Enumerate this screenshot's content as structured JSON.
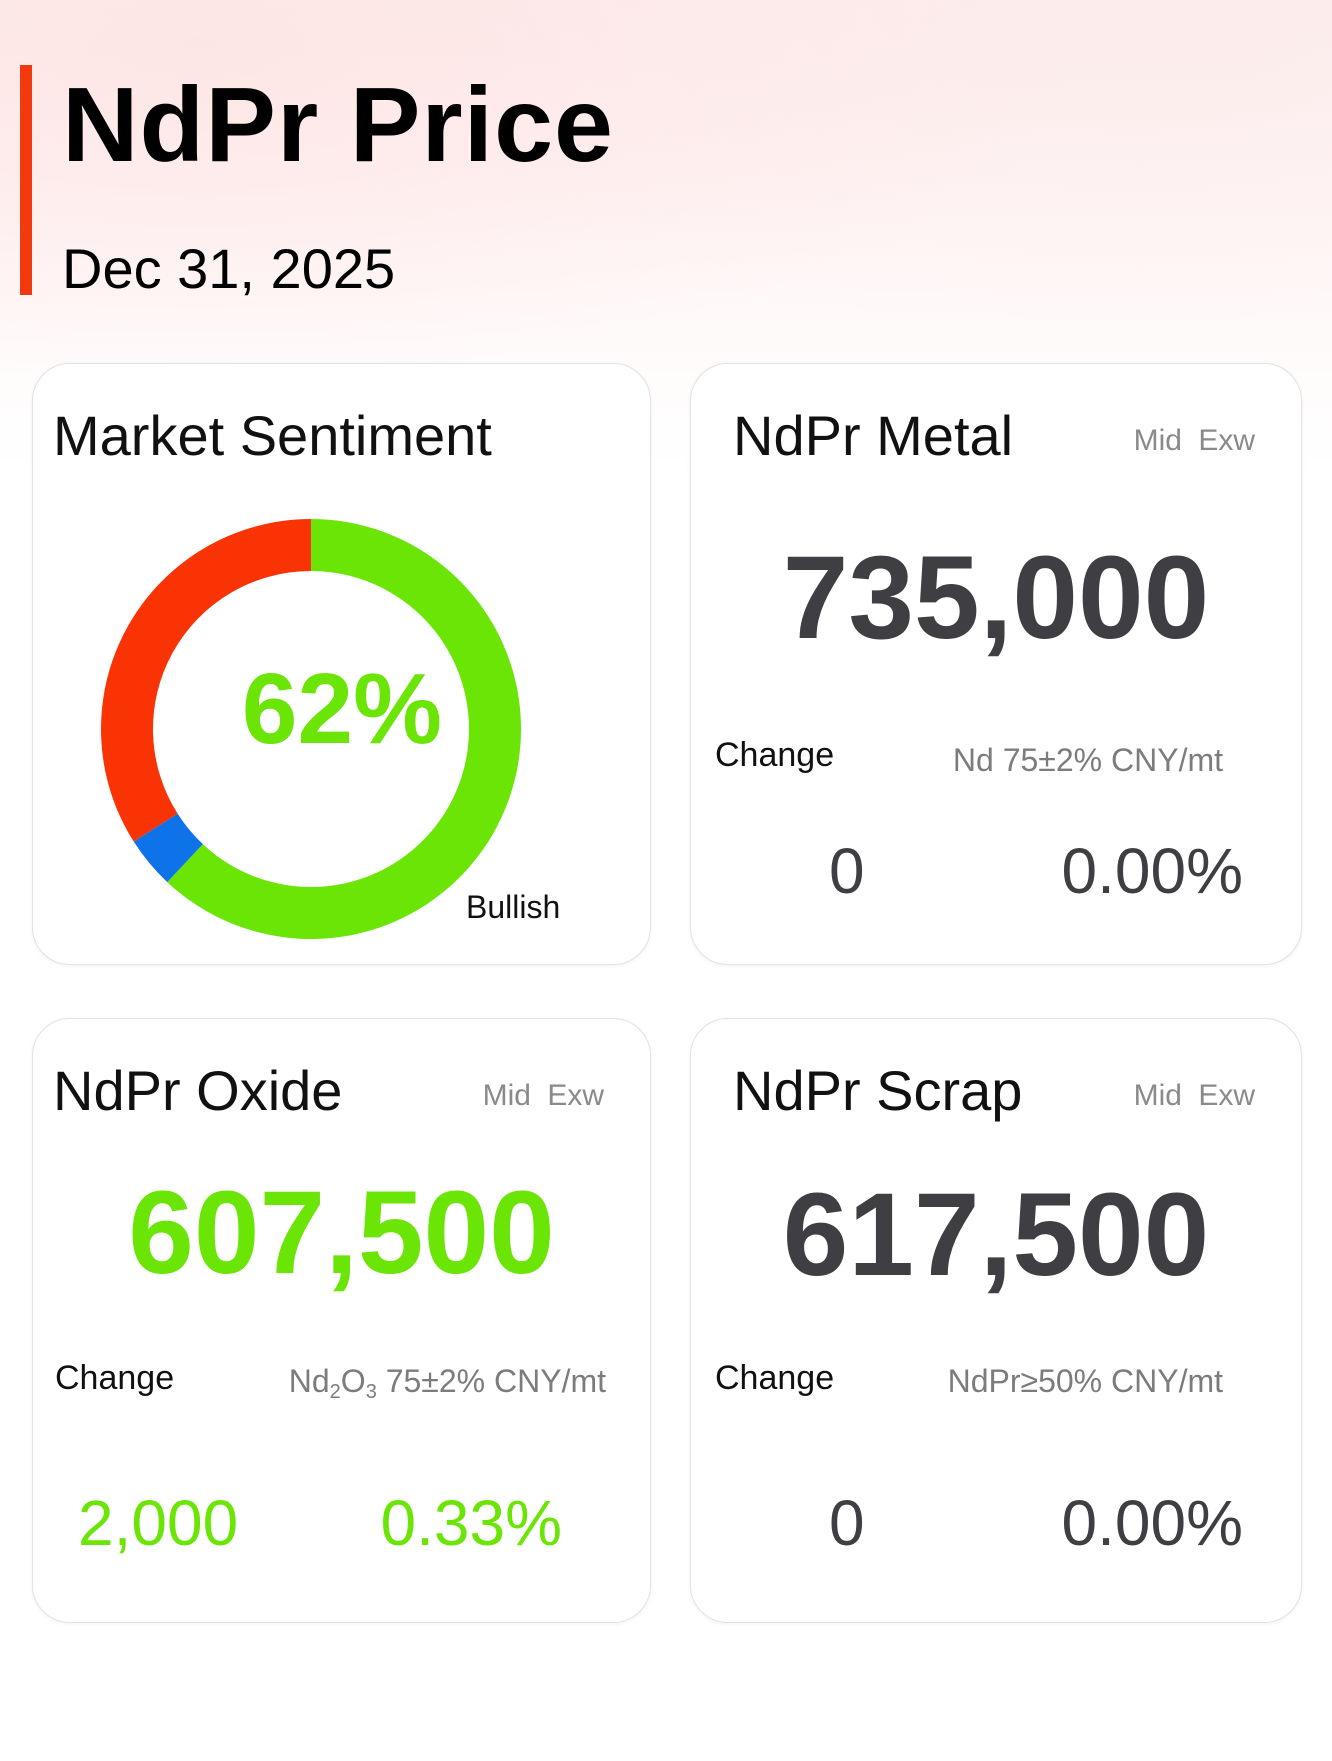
{
  "header": {
    "title": "NdPr Price",
    "date": "Dec 31, 2025"
  },
  "colors": {
    "accent": "#f23a0e",
    "bullish": "#6ae506",
    "bearish": "#f93303",
    "neutral": "#0e72e8",
    "price_neutral": "#3f3f43"
  },
  "sentiment": {
    "title": "Market Sentiment",
    "percent_label": "62%",
    "caption": "Bullish"
  },
  "chart_data": {
    "type": "pie",
    "title": "Market Sentiment",
    "center_label": "62%",
    "start_angle_deg": 0,
    "slices": [
      {
        "label": "Bullish",
        "value": 62,
        "color": "#6ae506"
      },
      {
        "label": "",
        "value": 4,
        "color": "#0e72e8"
      },
      {
        "label": "",
        "value": 34,
        "color": "#f93303"
      }
    ]
  },
  "metal": {
    "title": "NdPr Metal",
    "mid_exw": "Mid  Exw",
    "price": "735,000",
    "change_label": "Change",
    "spec": "Nd 75±2% CNY/mt",
    "change_abs": "0",
    "change_pct": "0.00%"
  },
  "oxide": {
    "title": "NdPr Oxide",
    "mid_exw": "Mid  Exw",
    "price": "607,500",
    "change_label": "Change",
    "spec_nd": "Nd",
    "spec_sub1": "2",
    "spec_o": "O",
    "spec_sub2": "3",
    "spec_rest": " 75±2% CNY/mt",
    "change_abs": "2,000",
    "change_pct": "0.33%"
  },
  "scrap": {
    "title": "NdPr Scrap",
    "mid_exw": "Mid  Exw",
    "price": "617,500",
    "change_label": "Change",
    "spec": "NdPr≥50% CNY/mt",
    "change_abs": "0",
    "change_pct": "0.00%"
  }
}
